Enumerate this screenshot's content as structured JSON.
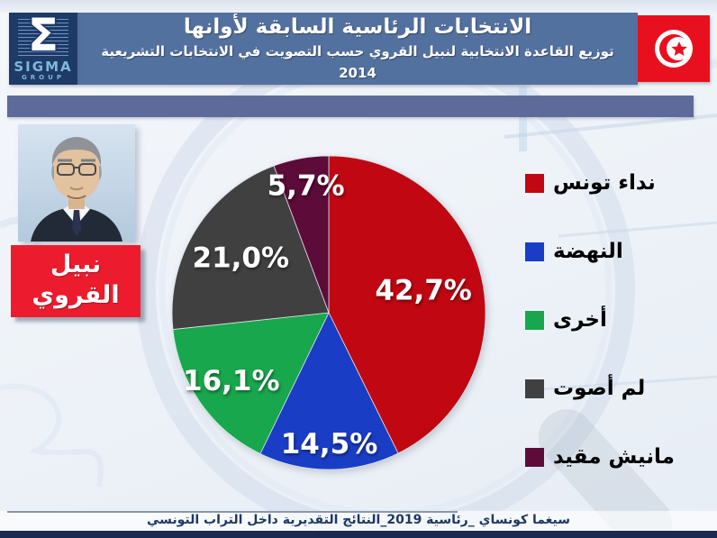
{
  "header": {
    "title": "الانتخابات الرئاسية السابقة لأوانها",
    "subtitle": "توزيع القاعدة الانتخابية لنبيل القروي حسب التصويت في الانتخابات التشريعية 2014",
    "bar_color": "#53719F",
    "logo": {
      "sigma_symbol": "Σ",
      "name": "SIGMA",
      "subname": "GROUP"
    }
  },
  "candidate": {
    "name_line1": "نبيل",
    "name_line2": "القروي",
    "label_color": "#EC1C2E"
  },
  "chart_data": {
    "type": "pie",
    "title": "",
    "unit": "%",
    "start_angle_deg": 0,
    "direction": "clockwise",
    "legend_position": "right",
    "decimal_separator": ",",
    "slices": [
      {
        "label": "نداء تونس",
        "value": 42.7,
        "display": "42,7%",
        "color": "#C00712",
        "label_r": 0.62
      },
      {
        "label": "النهضة",
        "value": 14.5,
        "display": "14,5%",
        "color": "#1A3DC6",
        "label_r": 0.84
      },
      {
        "label": "أخرى",
        "value": 16.1,
        "display": "16,1%",
        "color": "#18A74C",
        "label_r": 0.76
      },
      {
        "label": "لم أصوت",
        "value": 21.0,
        "display": "21,0%",
        "color": "#404040",
        "label_r": 0.66
      },
      {
        "label": "مانيش مقيد",
        "value": 5.7,
        "display": "5,7%",
        "color": "#5D0B38",
        "label_r": 0.82
      }
    ]
  },
  "footer": {
    "caption": "سيغما كونساي _رئاسية 2019_النتائج التقديرية داخل التراب التونسي",
    "bar_color": "#1B2951"
  }
}
